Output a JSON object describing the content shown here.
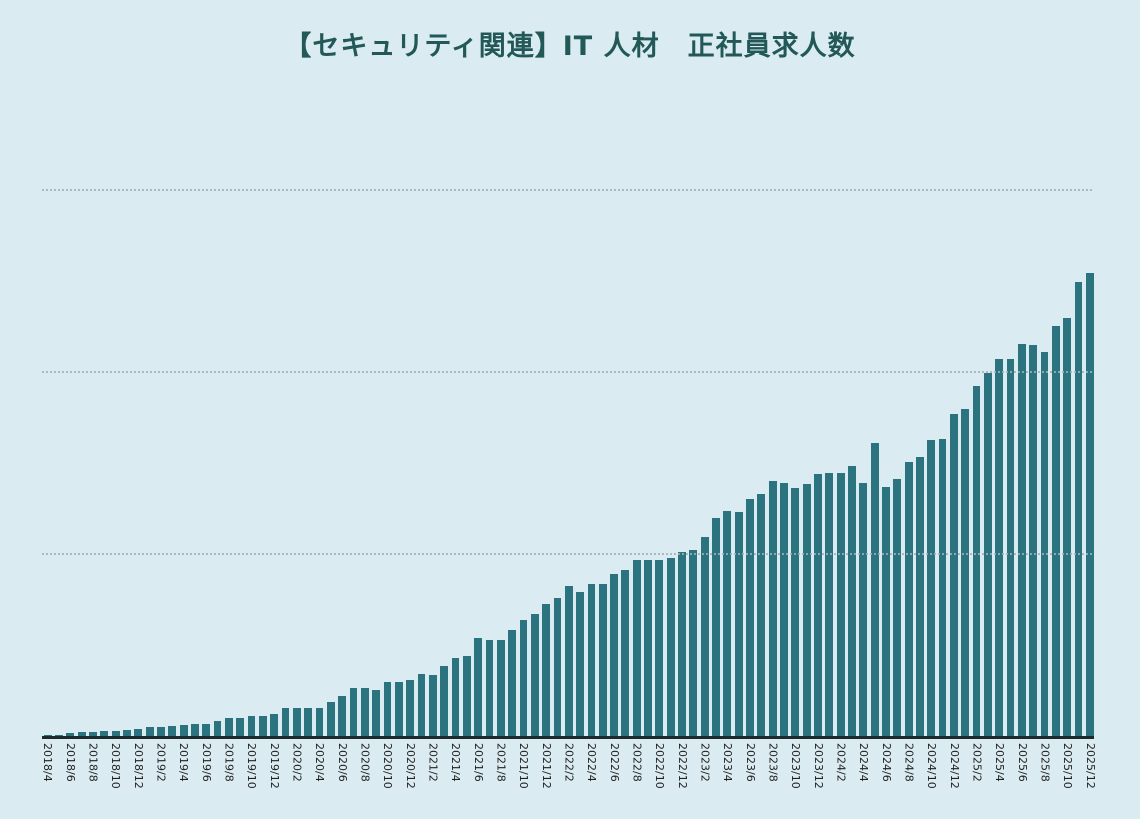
{
  "page": {
    "background_color": "#daecf1"
  },
  "header": {
    "title": "【セキュリティ関連】IT 人材　正社員求人数",
    "title_color": "#235859"
  },
  "chart_data": {
    "type": "bar",
    "title": "【セキュリティ関連】IT 人材　正社員求人数",
    "xlabel": "",
    "ylabel": "",
    "legend": "none",
    "grid": "horizontal dotted gridlines",
    "ylim": [
      0,
      3200
    ],
    "gridline_values": [
      1000,
      2000,
      3000
    ],
    "x_tick_every": 2,
    "categories": [
      "2018/4",
      "2018/5",
      "2018/6",
      "2018/7",
      "2018/8",
      "2018/9",
      "2018/10",
      "2018/11",
      "2018/12",
      "2019/1",
      "2019/2",
      "2019/3",
      "2019/4",
      "2019/5",
      "2019/6",
      "2019/7",
      "2019/8",
      "2019/9",
      "2019/10",
      "2019/11",
      "2019/12",
      "2020/1",
      "2020/2",
      "2020/3",
      "2020/4",
      "2020/5",
      "2020/6",
      "2020/7",
      "2020/8",
      "2020/9",
      "2020/10",
      "2020/11",
      "2020/12",
      "2021/1",
      "2021/2",
      "2021/3",
      "2021/4",
      "2021/5",
      "2021/6",
      "2021/7",
      "2021/8",
      "2021/9",
      "2021/10",
      "2021/11",
      "2021/12",
      "2022/1",
      "2022/2",
      "2022/3",
      "2022/4",
      "2022/5",
      "2022/6",
      "2022/7",
      "2022/8",
      "2022/9",
      "2022/10",
      "2022/11",
      "2022/12",
      "2023/1",
      "2023/2",
      "2023/3",
      "2023/4",
      "2023/5",
      "2023/6",
      "2023/7",
      "2023/8",
      "2023/9",
      "2023/10",
      "2023/11",
      "2023/12",
      "2024/1",
      "2024/2",
      "2024/3",
      "2024/4",
      "2024/5",
      "2024/6",
      "2024/7",
      "2024/8",
      "2024/9",
      "2024/10",
      "2024/11",
      "2024/12",
      "2025/1",
      "2025/2",
      "2025/3",
      "2025/4",
      "2025/5",
      "2025/6",
      "2025/7",
      "2025/8",
      "2025/9",
      "2025/10",
      "2025/11",
      "2025/12"
    ],
    "values": [
      11,
      11,
      22,
      28,
      28,
      33,
      33,
      39,
      44,
      55,
      55,
      61,
      66,
      72,
      72,
      88,
      107,
      102,
      113,
      118,
      124,
      157,
      162,
      157,
      162,
      190,
      223,
      272,
      267,
      261,
      305,
      300,
      311,
      345,
      342,
      393,
      432,
      448,
      547,
      536,
      536,
      586,
      646,
      679,
      734,
      762,
      828,
      800,
      844,
      839,
      894,
      916,
      976,
      971,
      971,
      982,
      1015,
      1026,
      1097,
      1202,
      1240,
      1235,
      1306,
      1334,
      1405,
      1394,
      1367,
      1389,
      1444,
      1450,
      1450,
      1488,
      1394,
      1615,
      1372,
      1416,
      1510,
      1537,
      1631,
      1639,
      1774,
      1802,
      1928,
      2002,
      2077,
      2077,
      2159,
      2153,
      2115,
      2258,
      2302,
      2500,
      2550
    ],
    "colors": {
      "bar": "#2b737e",
      "axis_line": "#1b2b2d",
      "gridline": "#9fb3b8",
      "tick_label": "#222222"
    }
  }
}
